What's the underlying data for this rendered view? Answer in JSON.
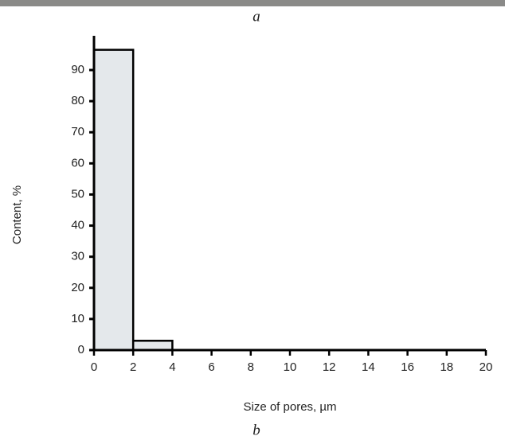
{
  "chart_data": {
    "type": "histogram",
    "annotations": [
      "a",
      "b"
    ],
    "xlabel": "Size of pores, µm",
    "ylabel": "Content, %",
    "bins": [
      0,
      2,
      4
    ],
    "counts": [
      96.5,
      3
    ],
    "color": "#e4e8eb",
    "xlim": [
      0,
      20
    ],
    "xticks": [
      0,
      2,
      4,
      6,
      8,
      10,
      12,
      14,
      16,
      18,
      20
    ],
    "ylim": [
      0,
      101
    ],
    "yticks": [
      0,
      10,
      20,
      30,
      40,
      50,
      60,
      70,
      80,
      90
    ],
    "grid": false
  }
}
